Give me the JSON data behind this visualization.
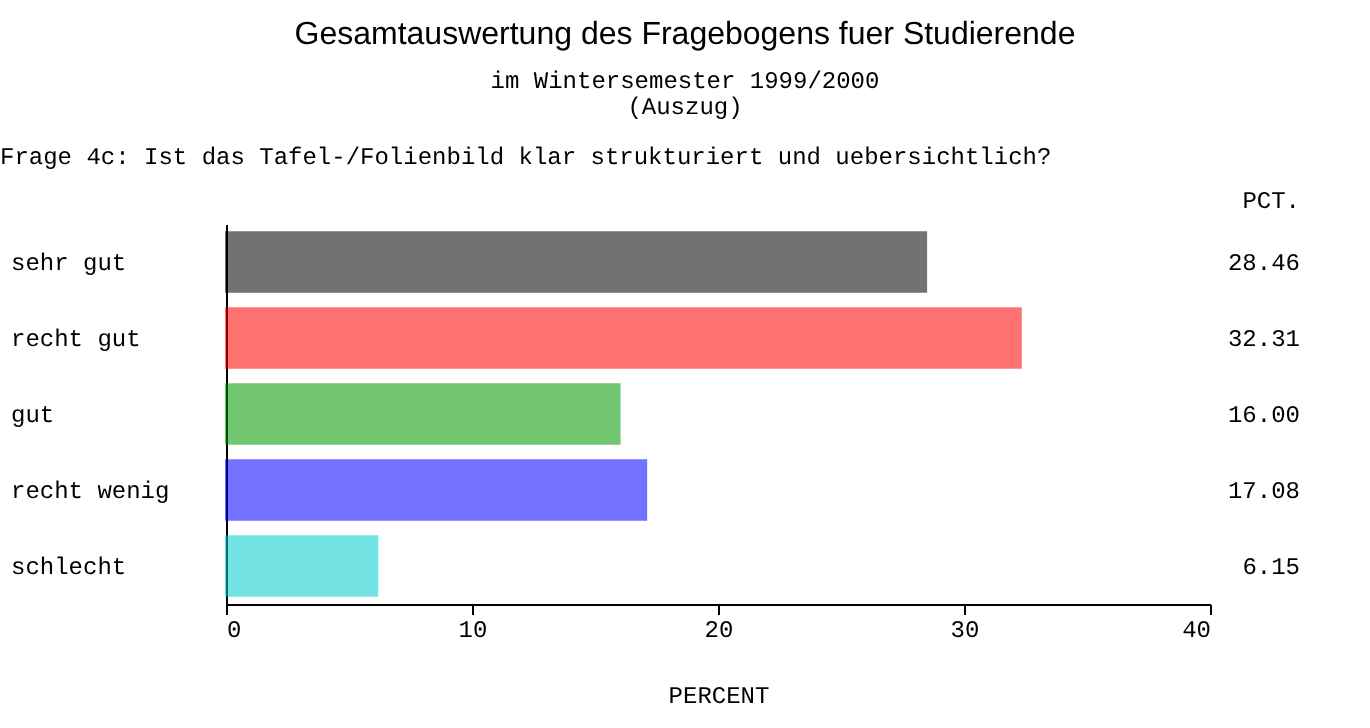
{
  "chart_data": {
    "type": "bar",
    "orientation": "horizontal",
    "title": "Gesamtauswertung des Fragebogens fuer Studierende",
    "subtitle": "im Wintersemester 1999/2000\n(Auszug)",
    "annotations": [
      "Frage 4c: Ist das Tafel-/Folienbild klar strukturiert und uebersichtlich?",
      "PCT."
    ],
    "xlabel": "PERCENT",
    "categories": [
      "sehr gut",
      "recht gut",
      "gut",
      "recht wenig",
      "schlecht"
    ],
    "values": [
      28.46,
      32.31,
      16.0,
      17.08,
      6.15
    ],
    "value_labels": [
      "28.46",
      "32.31",
      "16.00",
      "17.08",
      "6.15"
    ],
    "colors": [
      "#000000",
      "#ff0000",
      "#009900",
      "#0000ff",
      "#00cccc"
    ],
    "xlim": [
      0,
      40
    ],
    "xticks": [
      0,
      10,
      20,
      30,
      40
    ],
    "grid": false
  }
}
